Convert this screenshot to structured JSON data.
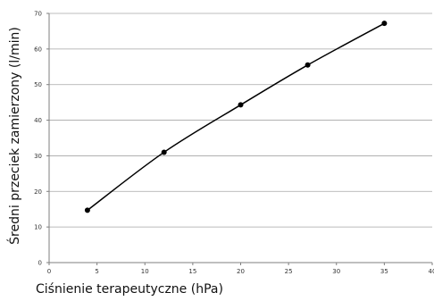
{
  "chart_data": {
    "type": "line",
    "title": "",
    "xlabel": "Ciśnienie terapeutyczne (hPa)",
    "ylabel": "Średni przeciek zamierzony (l/min)",
    "xlim": [
      0,
      40
    ],
    "ylim": [
      0,
      70
    ],
    "x_ticks": [
      "0",
      "5",
      "10",
      "15",
      "20",
      "25",
      "30",
      "35",
      "40"
    ],
    "y_ticks": [
      "0",
      "10",
      "20",
      "30",
      "40",
      "50",
      "60",
      "70"
    ],
    "grid": "horizontal",
    "legend": "none",
    "series": [
      {
        "x": [
          4,
          12,
          20,
          27,
          35
        ],
        "y": [
          14.7,
          31.0,
          44.3,
          55.5,
          67.2
        ]
      }
    ],
    "colors": {
      "line": "#000000",
      "marker": "#000000",
      "grid": "#a6a6a6",
      "axis": "#7f7f7f"
    }
  }
}
